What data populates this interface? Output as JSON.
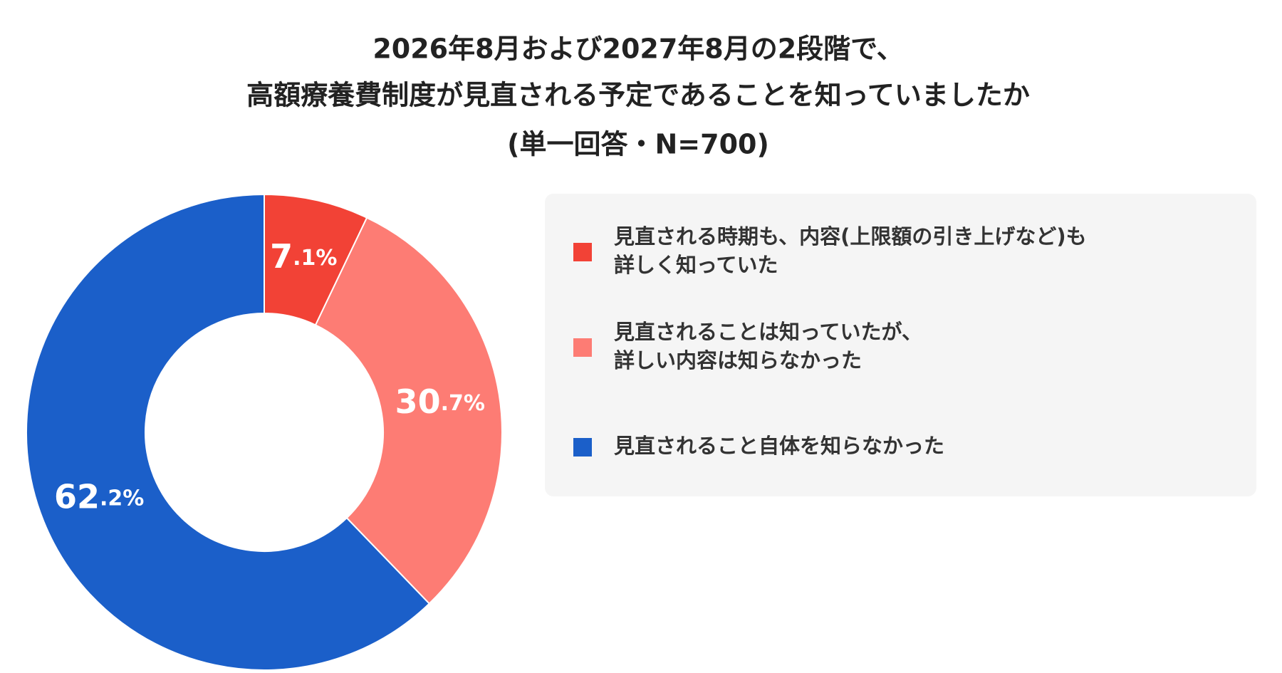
{
  "chart_data": {
    "type": "donut",
    "title": [
      "2026年8月および2027年8月の2段階で、",
      "高額療養費制度が見直される予定であることを知っていましたか",
      "(単一回答・N=700)"
    ],
    "categories": [
      "見直される時期も、内容(上限額の引き上げなど)も\n詳しく知っていた",
      "見直されることは知っていたが、\n詳しい内容は知らなかった",
      "見直されること自体を知らなかった"
    ],
    "values": [
      7.1,
      30.7,
      62.2
    ],
    "value_labels": [
      "7.1%",
      "30.7%",
      "62.2%"
    ],
    "colors": [
      "#f24236",
      "#fd7c74",
      "#1b5fc9"
    ]
  }
}
